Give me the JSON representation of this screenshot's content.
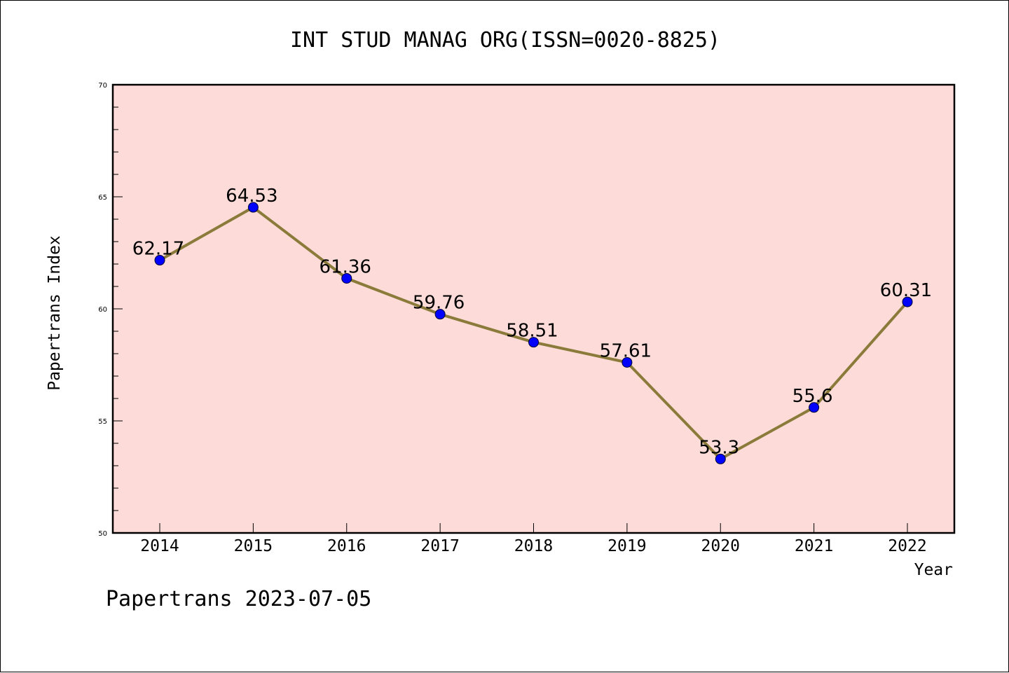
{
  "chart_data": {
    "type": "line",
    "title": "INT STUD MANAG ORG(ISSN=0020-8825)",
    "xlabel": "Year",
    "ylabel": "Papertrans Index",
    "categories": [
      "2014",
      "2015",
      "2016",
      "2017",
      "2018",
      "2019",
      "2020",
      "2021",
      "2022"
    ],
    "series": [
      {
        "values": [
          62.17,
          64.53,
          61.36,
          59.76,
          58.51,
          57.61,
          53.3,
          55.6,
          60.31
        ],
        "labels": [
          "62.17",
          "64.53",
          "61.36",
          "59.76",
          "58.51",
          "57.61",
          "53.3",
          "55.6",
          "60.31"
        ]
      }
    ],
    "ylim": [
      50,
      70
    ],
    "yticks": [
      50,
      55,
      60,
      65,
      70
    ],
    "grid": false,
    "plot_background": "#fddbd8",
    "line_color": "#8b7b3a",
    "marker_color": "#0000ff"
  },
  "footer": {
    "text": "Papertrans 2023-07-05"
  }
}
